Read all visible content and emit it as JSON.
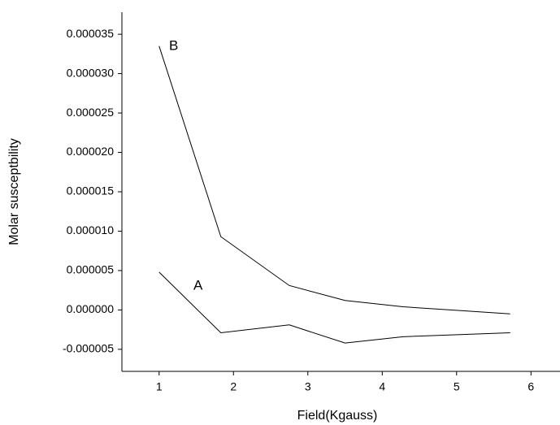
{
  "chart_data": {
    "type": "line",
    "x_label": "Field(Kgauss)",
    "y_label": "Molar susceptbility",
    "series": [
      {
        "name": "B",
        "color": "#000000",
        "x": [
          1,
          1.83,
          2.75,
          3.5,
          4.28,
          5.72
        ],
        "values": [
          3.35e-05,
          9.3e-06,
          3.1e-06,
          1.2e-06,
          4e-07,
          -5e-07
        ]
      },
      {
        "name": "A",
        "color": "#000000",
        "x": [
          1,
          1.83,
          2.75,
          3.5,
          4.28,
          5.72
        ],
        "values": [
          4.8e-06,
          -2.9e-06,
          -1.9e-06,
          -4.2e-06,
          -3.4e-06,
          -2.9e-06
        ]
      }
    ],
    "xlim": [
      0.5,
      6.39
    ],
    "xticks": [
      1,
      2,
      3,
      4,
      5,
      6
    ],
    "ylim": [
      -7.8e-06,
      3.78e-05
    ],
    "yticks": [
      {
        "value": -5e-06,
        "label": "-0.000005"
      },
      {
        "value": 0,
        "label": "0.000000"
      },
      {
        "value": 5e-06,
        "label": "0.000005"
      },
      {
        "value": 1e-05,
        "label": "0.000010"
      },
      {
        "value": 1.5e-05,
        "label": "0.000015"
      },
      {
        "value": 2e-05,
        "label": "0.000020"
      },
      {
        "value": 2.5e-05,
        "label": "0.000025"
      },
      {
        "value": 3e-05,
        "label": "0.000030"
      },
      {
        "value": 3.5e-05,
        "label": "0.000035"
      }
    ],
    "grid": false
  }
}
